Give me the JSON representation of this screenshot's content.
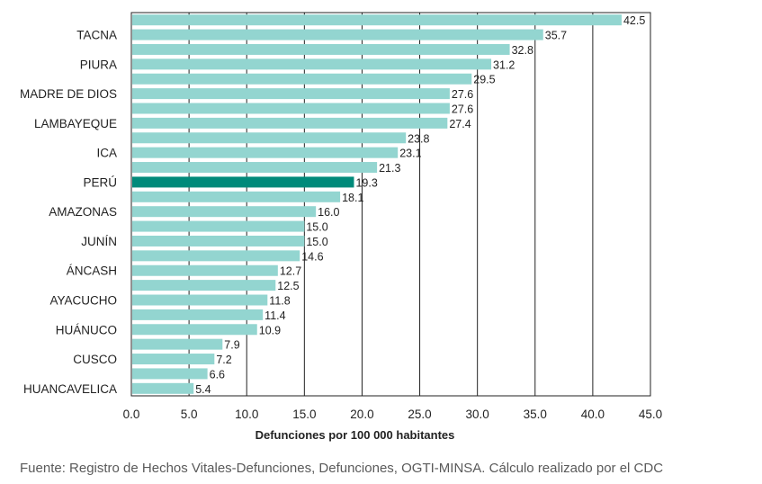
{
  "chart_data": {
    "type": "bar",
    "orientation": "horizontal",
    "categories": [
      "",
      "TACNA",
      "",
      "PIURA",
      "",
      "MADRE DE DIOS",
      "",
      "LAMBAYEQUE",
      "",
      "ICA",
      "",
      "PERÚ",
      "",
      "AMAZONAS",
      "",
      "JUNÍN",
      "",
      "ÁNCASH",
      "",
      "AYACUCHO",
      "",
      "HUÁNUCO",
      "",
      "CUSCO",
      "",
      "HUANCAVELICA"
    ],
    "values": [
      42.5,
      35.7,
      32.8,
      31.2,
      29.5,
      27.6,
      27.6,
      27.4,
      23.8,
      23.1,
      21.3,
      19.3,
      18.1,
      16.0,
      15.0,
      15.0,
      14.6,
      12.7,
      12.5,
      11.8,
      11.4,
      10.9,
      7.9,
      7.2,
      6.6,
      5.4
    ],
    "value_labels": [
      "42.5",
      "35.7",
      "32.8",
      "31.2",
      "29.5",
      "27.6",
      "27.6",
      "27.4",
      "23.8",
      "23.1",
      "21.3",
      "19.3",
      "18.1",
      "16.0",
      "15.0",
      "15.0",
      "14.6",
      "12.7",
      "12.5",
      "11.8",
      "11.4",
      "10.9",
      "7.9",
      "7.2",
      "6.6",
      "5.4"
    ],
    "highlight_index": 11,
    "xlim": [
      0,
      45
    ],
    "xticks": [
      "0.0",
      "5.0",
      "10.0",
      "15.0",
      "20.0",
      "25.0",
      "30.0",
      "35.0",
      "40.0",
      "45.0"
    ],
    "xlabel": "Defunciones por 100 000 habitantes",
    "ylabel": "",
    "title": "",
    "grid": "vertical",
    "colors": {
      "bar": "#93d5d0",
      "highlight": "#008a7a",
      "grid": "#222222"
    }
  },
  "source_text": "Fuente: Registro de Hechos Vitales-Defunciones, Defunciones, OGTI-MINSA. Cálculo realizado por el CDC"
}
